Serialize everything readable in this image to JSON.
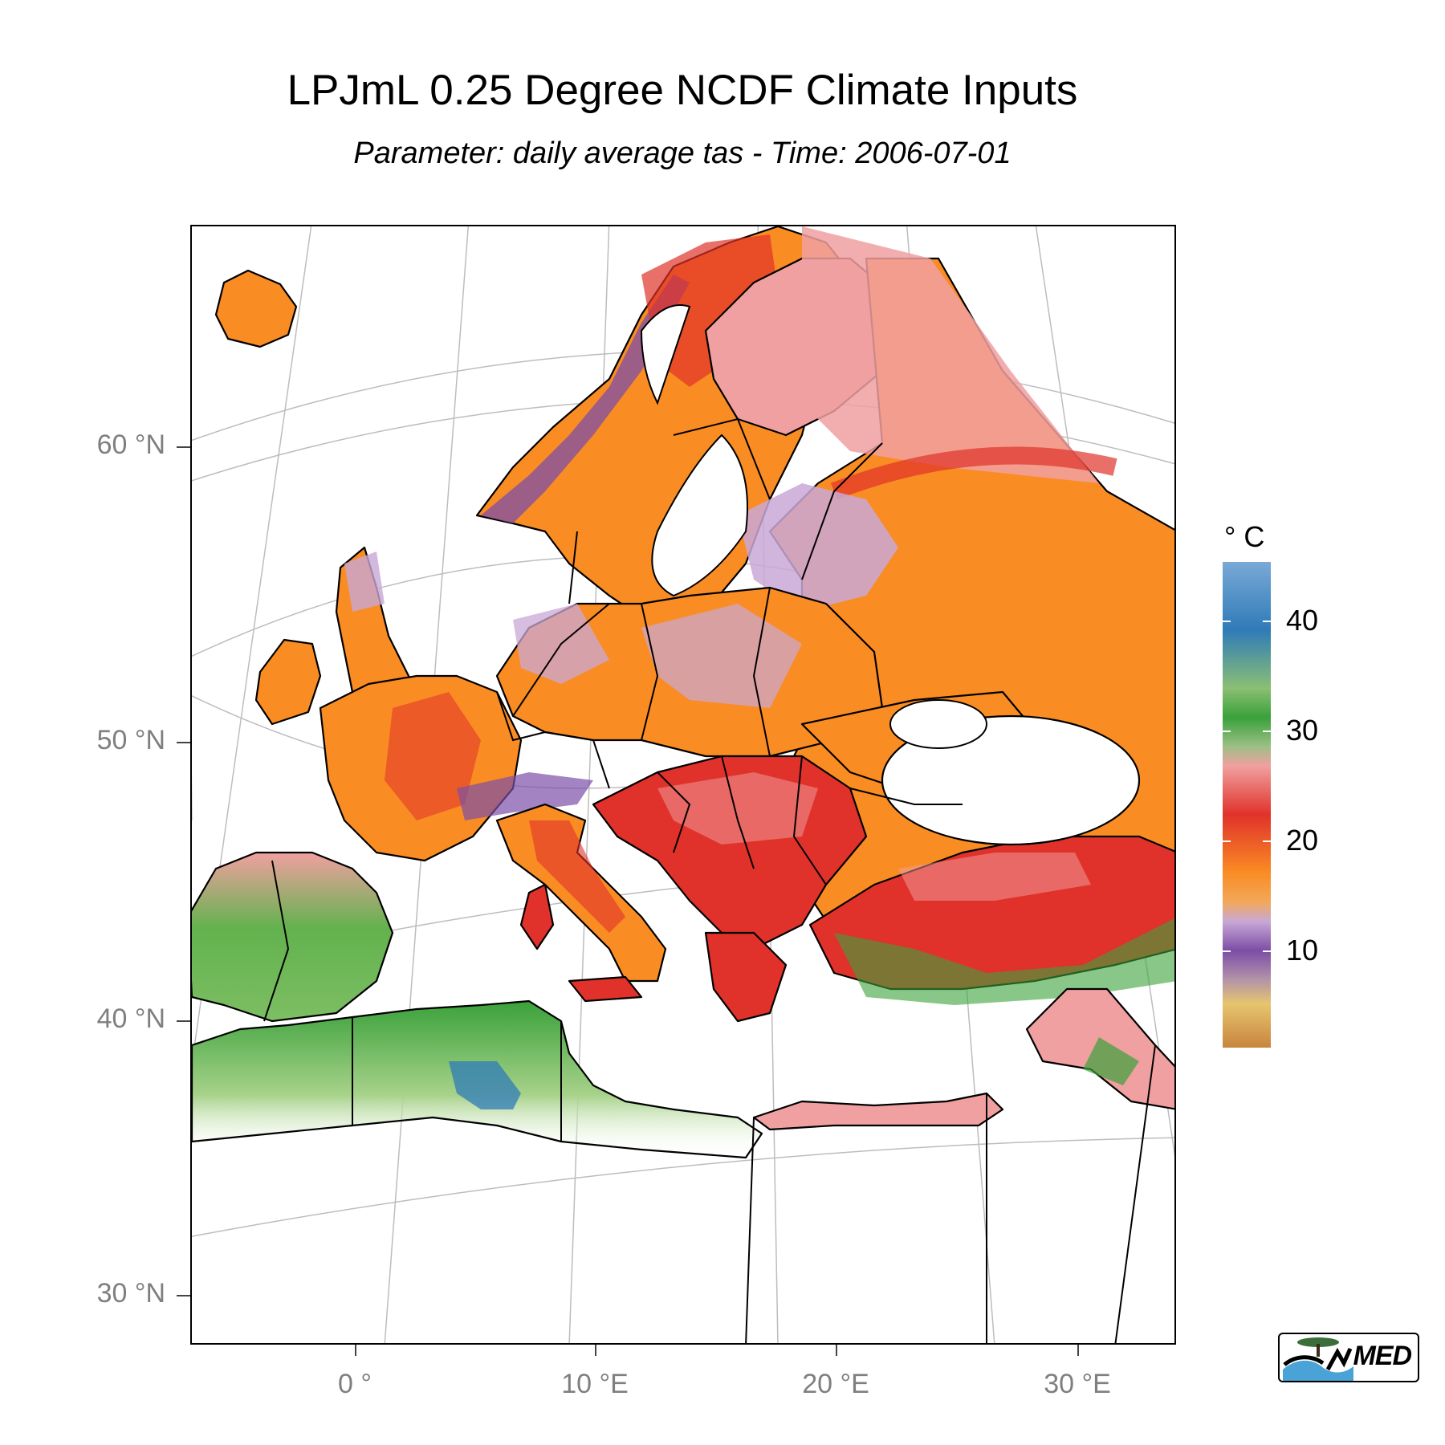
{
  "title": "LPJmL 0.25 Degree NCDF Climate Inputs",
  "subtitle": "Parameter: daily average tas - Time: 2006-07-01",
  "axes": {
    "y_labels": [
      "60 °N",
      "50 °N",
      "40 °N",
      "30 °N"
    ],
    "x_labels": [
      "0 °",
      "10 °E",
      "20 °E",
      "30 °E"
    ]
  },
  "legend": {
    "title": "° C",
    "labels": [
      "40",
      "30",
      "20",
      "10"
    ],
    "range": [
      1,
      45
    ],
    "colors": {
      "low": "#c8843e",
      "very_cool": "#e6c56e",
      "cool": "#7c4ea7",
      "mild": "#c9a8d6",
      "warm": "#fa8c24",
      "hot": "#e0322a",
      "very_hot": "#f0a0a0",
      "green": "#3aa13a",
      "light_green": "#a7d28a",
      "blue": "#2f7bb8"
    }
  },
  "map": {
    "projection": "conic",
    "graticule_color": "#bdbdbd",
    "border_color": "#000000",
    "water_color": "#ffffff"
  },
  "logo": {
    "text": "MED"
  }
}
